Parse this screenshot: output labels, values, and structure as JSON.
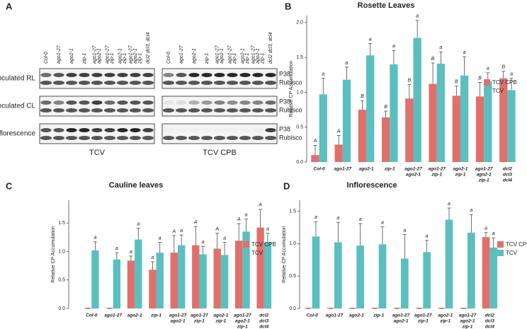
{
  "blot": {
    "panel": "A",
    "columns": [
      [
        "Col-0"
      ],
      [
        "ago1-27"
      ],
      [
        "ago2-1"
      ],
      [
        "zip-1"
      ],
      [
        "ago1-27",
        "ago2-1"
      ],
      [
        "ago1-27",
        "zip-1"
      ],
      [
        "ago2-1",
        "zip-1"
      ],
      [
        "ago1-27",
        "ago2-1",
        "zip-1"
      ],
      [
        "dcl2 dcl3, dcl4"
      ]
    ],
    "rows": [
      "Inoculated RL",
      "Non-inoculated CL",
      "Inflorescence"
    ],
    "bands": [
      "P38",
      "Rubisco"
    ],
    "groups": [
      "TCV",
      "TCV CPB"
    ]
  },
  "chart_data": [
    {
      "type": "bar",
      "panel": "B",
      "title": "Rosette Leaves",
      "ylabel": "Relative CP Accumulation",
      "categories": [
        [
          "Col-0"
        ],
        [
          "ago1-27"
        ],
        [
          "ago2-1"
        ],
        [
          "zip-1"
        ],
        [
          "ago1-27",
          "ago2-1"
        ],
        [
          "ago1-27",
          "zip-1"
        ],
        [
          "ago2-1",
          "zip-1"
        ],
        [
          "ago1-27",
          "ago2-1",
          "zip-1"
        ],
        [
          "dcl2",
          "dcl3",
          "dcl4"
        ]
      ],
      "series": [
        {
          "name": "TCV CPB",
          "color": "#e0706b",
          "values": [
            0.1,
            0.25,
            0.75,
            0.64,
            0.91,
            1.12,
            0.95,
            0.94,
            1.2
          ],
          "errors": [
            0.14,
            0.13,
            0.13,
            0.09,
            0.2,
            0.3,
            0.14,
            0.2,
            0.1
          ],
          "letters": [
            "A",
            "A",
            "B",
            "B",
            "B",
            "B",
            "B",
            "B",
            "B"
          ]
        },
        {
          "name": "TCV",
          "color": "#5bbfc0",
          "values": [
            0.97,
            1.18,
            1.53,
            1.4,
            1.78,
            1.41,
            1.24,
            1.16,
            1.03
          ],
          "errors": [
            0.23,
            0.18,
            0.17,
            0.2,
            0.25,
            0.17,
            0.27,
            0.12,
            0.17
          ],
          "letters": [
            "a",
            "a",
            "a",
            "a",
            "a",
            "a",
            "a",
            "a",
            "a"
          ]
        }
      ],
      "ylim": [
        0,
        2.1
      ],
      "yticks": [
        {
          "value": 0,
          "label": "0.0"
        },
        {
          "value": 0.5,
          "label": "0.5"
        },
        {
          "value": 1,
          "label": "1.0"
        },
        {
          "value": 1.5,
          "label": "1.5"
        },
        {
          "value": 2,
          "label": "2.0"
        }
      ],
      "legend": "right"
    },
    {
      "type": "bar",
      "panel": "C",
      "title": "Cauline leaves",
      "ylabel": "Relative CP Accumulation",
      "categories": [
        [
          "Col-0"
        ],
        [
          "ago1-27"
        ],
        [
          "ago2-1"
        ],
        [
          "zip-1"
        ],
        [
          "ago1-27",
          "ago2-1"
        ],
        [
          "ago1-27",
          "zip-1"
        ],
        [
          "ago2-1",
          "zip-1"
        ],
        [
          "ago1-27",
          "ago2-1",
          "zip-1"
        ],
        [
          "dcl2",
          "dcl3",
          "dcl4"
        ]
      ],
      "series": [
        {
          "name": "TCV CPB",
          "color": "#e0706b",
          "values": [
            0,
            0,
            0.84,
            0.68,
            0.98,
            1.11,
            1.05,
            1.19,
            1.42
          ],
          "errors": [
            0,
            0,
            0.08,
            0.14,
            0.3,
            0.33,
            0.27,
            0.3,
            0.32
          ],
          "letters": [
            null,
            null,
            "a",
            "a",
            "A",
            "A",
            "A",
            "A",
            "A"
          ]
        },
        {
          "name": "TCV",
          "color": "#5bbfc0",
          "values": [
            1.02,
            0.86,
            1.21,
            0.98,
            1.11,
            0.95,
            0.94,
            1.35,
            1.16
          ],
          "errors": [
            0.15,
            0.12,
            0.2,
            0.18,
            0.18,
            0.14,
            0.22,
            0.22,
            0.16
          ],
          "letters": [
            "a",
            "a",
            "a",
            "a",
            "a",
            "a",
            "a",
            "a",
            "a"
          ]
        }
      ],
      "ylim": [
        0,
        1.9
      ],
      "yticks": [
        {
          "value": 0,
          "label": "0.0"
        },
        {
          "value": 0.5,
          "label": "0.5"
        },
        {
          "value": 1,
          "label": "1.0"
        },
        {
          "value": 1.5,
          "label": "1.5"
        }
      ],
      "legend": "right"
    },
    {
      "type": "bar",
      "panel": "D",
      "title": "Inflorescence",
      "ylabel": "Relative CP Accumulation",
      "categories": [
        [
          "Col-0"
        ],
        [
          "ago1-27"
        ],
        [
          "ago2-1"
        ],
        [
          "zip-1"
        ],
        [
          "ago1-27",
          "ago2-1"
        ],
        [
          "ago1-27",
          "zip-1"
        ],
        [
          "ago2-1",
          "zip-1"
        ],
        [
          "ago1-27",
          "ago2-1",
          "zip-1"
        ],
        [
          "dcl2",
          "dcl3",
          "dcl4"
        ]
      ],
      "series": [
        {
          "name": "TCV CPB",
          "color": "#e0706b",
          "values": [
            0,
            0,
            0,
            0,
            0,
            0,
            0,
            0,
            1.1
          ],
          "errors": [
            0,
            0,
            0,
            0,
            0,
            0,
            0,
            0,
            0.07
          ],
          "letters": [
            null,
            null,
            null,
            null,
            null,
            null,
            null,
            null,
            "a"
          ]
        },
        {
          "name": "TCV",
          "color": "#5bbfc0",
          "values": [
            1.11,
            1.02,
            0.97,
            0.99,
            0.77,
            0.87,
            1.37,
            1.17,
            0.94
          ],
          "errors": [
            0.23,
            0.31,
            0.34,
            0.27,
            0.37,
            0.18,
            0.18,
            0.28,
            0.15
          ],
          "letters": [
            "a",
            "a",
            "a",
            "a",
            "a",
            "a",
            "a",
            "a",
            "a"
          ]
        }
      ],
      "ylim": [
        0,
        1.67
      ],
      "yticks": [
        {
          "value": 0,
          "label": "0.0"
        },
        {
          "value": 0.5,
          "label": "0.5"
        },
        {
          "value": 1,
          "label": "1.0"
        },
        {
          "value": 1.5,
          "label": "1.5"
        }
      ],
      "legend": "right"
    }
  ]
}
